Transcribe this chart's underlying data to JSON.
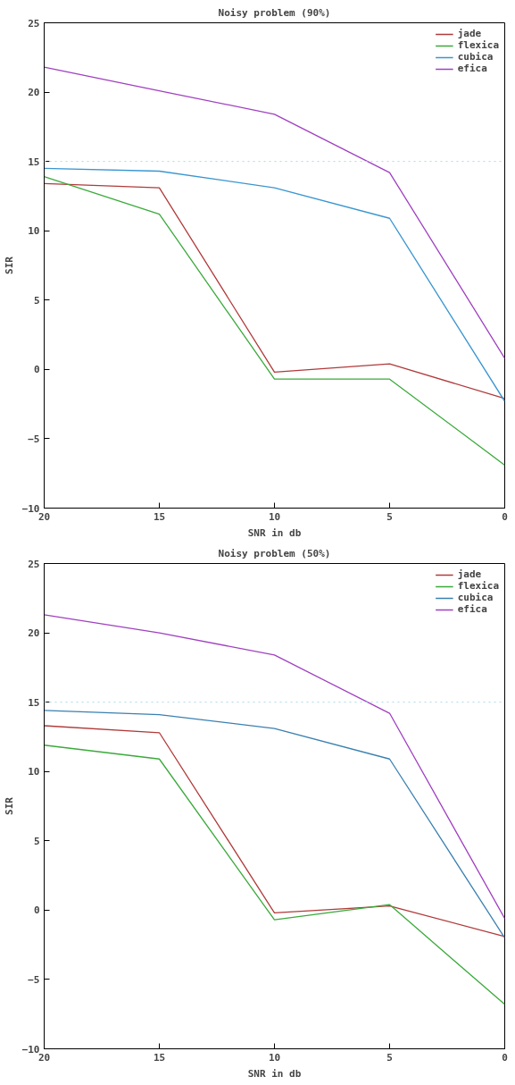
{
  "chart_data": [
    {
      "type": "line",
      "title": "Noisy problem (90%)",
      "xlabel": "SNR in db",
      "ylabel": "SIR",
      "x": [
        20,
        15,
        10,
        5,
        0
      ],
      "xlim": [
        20,
        0
      ],
      "xticks": [
        20,
        15,
        10,
        5,
        0
      ],
      "ylim": [
        -10,
        25
      ],
      "yticks": [
        -10,
        -5,
        0,
        5,
        10,
        15,
        20,
        25
      ],
      "grid": false,
      "legend": "top right",
      "line_style": "solid",
      "ref_lines": [
        {
          "axis": "y",
          "value": 15,
          "label": null,
          "color": "#a8d8e8",
          "line_style": "dotted"
        }
      ],
      "series": [
        {
          "name": "jade",
          "color": "#b03a3a",
          "values": [
            13.4,
            13.1,
            -0.2,
            0.4,
            -2.1
          ]
        },
        {
          "name": "flexica",
          "color": "#3aaa3a",
          "values": [
            13.9,
            11.2,
            -0.7,
            -0.7,
            -6.9
          ]
        },
        {
          "name": "cubica",
          "color": "#3a96d0",
          "values": [
            14.5,
            14.3,
            13.1,
            10.9,
            -2.3
          ]
        },
        {
          "name": "efica",
          "color": "#a040c0",
          "values": [
            21.8,
            20.1,
            18.4,
            14.2,
            0.8
          ]
        }
      ]
    },
    {
      "type": "line",
      "title": "Noisy problem (50%)",
      "xlabel": "SNR in db",
      "ylabel": "SIR",
      "x": [
        20,
        15,
        10,
        5,
        0
      ],
      "xlim": [
        20,
        0
      ],
      "xticks": [
        20,
        15,
        10,
        5,
        0
      ],
      "ylim": [
        -10,
        25
      ],
      "yticks": [
        -10,
        -5,
        0,
        5,
        10,
        15,
        20,
        25
      ],
      "grid": false,
      "legend": "top right",
      "line_style": "solid",
      "ref_lines": [
        {
          "axis": "y",
          "value": 15,
          "label": null,
          "color": "#a8d8e8",
          "line_style": "dotted"
        }
      ],
      "series": [
        {
          "name": "jade",
          "color": "#b03a3a",
          "values": [
            13.3,
            12.8,
            -0.2,
            0.3,
            -1.9
          ]
        },
        {
          "name": "flexica",
          "color": "#3aaa3a",
          "values": [
            11.9,
            10.9,
            -0.7,
            0.4,
            -6.8
          ]
        },
        {
          "name": "cubica",
          "color": "#3a80b0",
          "values": [
            14.4,
            14.1,
            13.1,
            10.9,
            -2.0
          ]
        },
        {
          "name": "efica",
          "color": "#a040c0",
          "values": [
            21.3,
            20.0,
            18.4,
            14.2,
            -0.6
          ]
        }
      ]
    }
  ]
}
